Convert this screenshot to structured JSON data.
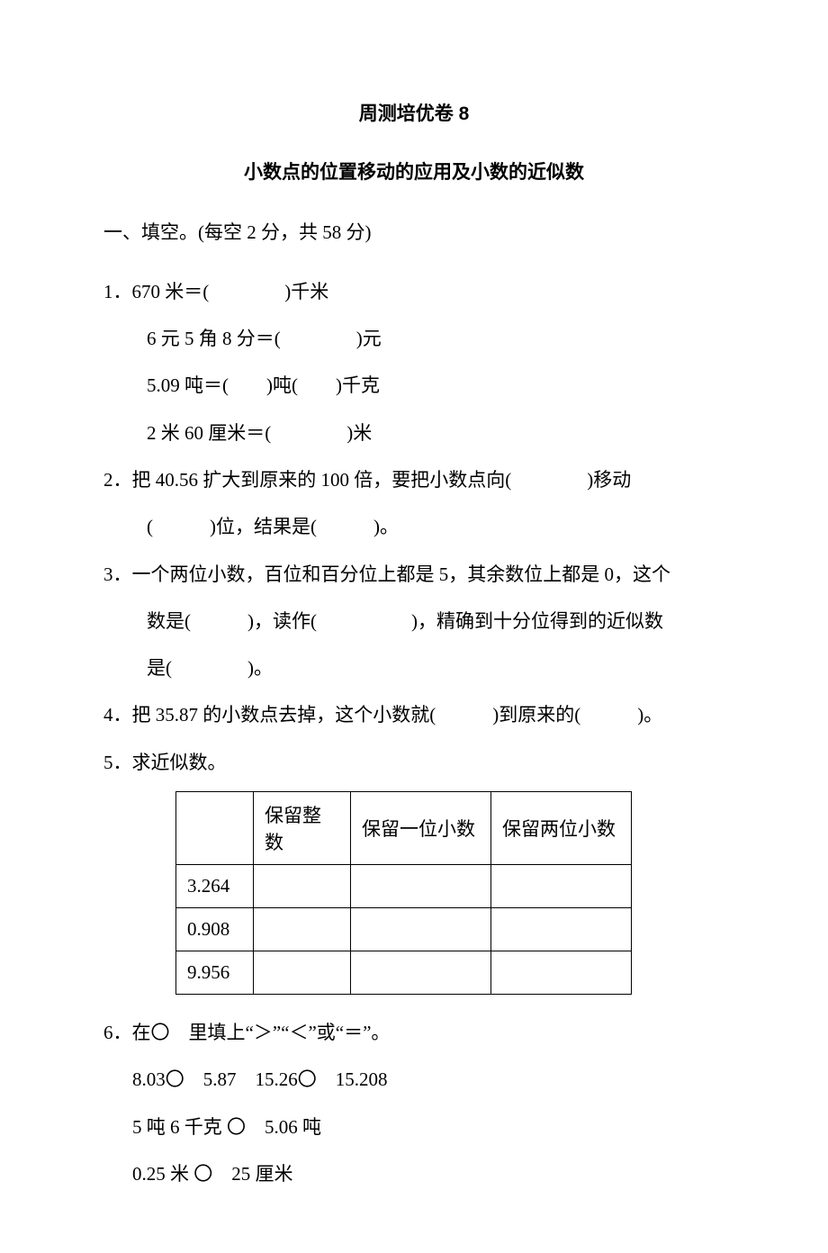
{
  "title": "周测培优卷 8",
  "subtitle": "小数点的位置移动的应用及小数的近似数",
  "section_header": "一、填空。(每空 2 分，共 58 分)",
  "q1": {
    "line1": "1．670 米＝(　　　　)千米",
    "line2": "6 元 5 角 8 分＝(　　　　)元",
    "line3": "5.09 吨＝(　　)吨(　　)千克",
    "line4": "2 米 60 厘米＝(　　　　)米"
  },
  "q2": {
    "line1": "2．把 40.56 扩大到原来的 100 倍，要把小数点向(　　　　)移动",
    "line2": "(　　　)位，结果是(　　　)。"
  },
  "q3": {
    "line1": "3．一个两位小数，百位和百分位上都是 5，其余数位上都是 0，这个",
    "line2": "数是(　　　)，读作(　　　　　)，精确到十分位得到的近似数",
    "line3": "是(　　　　)。"
  },
  "q4": "4．把 35.87 的小数点去掉，这个小数就(　　　)到原来的(　　　)。",
  "q5": {
    "label": "5．求近似数。",
    "headers": [
      "",
      "保留整数",
      "保留一位小数",
      "保留两位小数"
    ],
    "rows": [
      [
        "3.264",
        "",
        "",
        ""
      ],
      [
        "0.908",
        "",
        "",
        ""
      ],
      [
        "9.956",
        "",
        "",
        ""
      ]
    ]
  },
  "q6": {
    "label": "6．在〇　里填上“＞”“＜”或“＝”。",
    "line1": "8.03〇　5.87　15.26〇　15.208",
    "line2": "5 吨 6 千克 〇　5.06 吨",
    "line3": "0.25 米 〇　25 厘米"
  }
}
